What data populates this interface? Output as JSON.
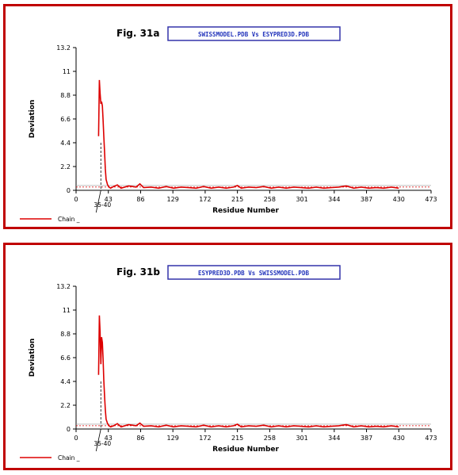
{
  "charts": [
    {
      "fig_label": "Fig. 31a",
      "title": "SWISSMODEL.PDB Vs ESYPRED3D.PDB",
      "legend_label": "Chain _",
      "annotation": "35-40"
    },
    {
      "fig_label": "Fig. 31b",
      "title": "ESYPRED3D.PDB Vs SWISSMODEL.PDB",
      "legend_label": "Chain _",
      "annotation": "35-40"
    }
  ],
  "colors": {
    "series": "#dd0000",
    "frame": "#c00000",
    "title_box": "#3333aa",
    "title_text": "#2233bb"
  },
  "chart_data": [
    {
      "type": "line",
      "title": "SWISSMODEL.PDB Vs ESYPRED3D.PDB",
      "xlabel": "Residue Number",
      "ylabel": "Deviation",
      "xlim": [
        0,
        473
      ],
      "ylim": [
        0,
        13.2
      ],
      "xticks": [
        0,
        43,
        86,
        129,
        172,
        215,
        258,
        301,
        344,
        387,
        430,
        473
      ],
      "yticks": [
        0,
        2.2,
        4.4,
        6.6,
        8.8,
        11,
        13.2
      ],
      "xtick_labels": [
        "0",
        "43",
        "86",
        "129",
        "172",
        "215",
        "258",
        "301",
        "344",
        "387",
        "430",
        "473"
      ],
      "ytick_labels": [
        "0",
        "2.2",
        "4.4",
        "6.6",
        "8.8",
        "11",
        "13.2"
      ],
      "threshold": 0.3,
      "series": [
        {
          "name": "Chain _",
          "x": [
            30,
            31,
            32,
            33,
            34,
            35,
            36,
            37,
            38,
            39,
            40,
            42,
            44,
            46,
            50,
            55,
            60,
            70,
            80,
            85,
            90,
            100,
            110,
            120,
            130,
            140,
            150,
            160,
            170,
            180,
            190,
            200,
            210,
            215,
            220,
            230,
            240,
            250,
            260,
            270,
            280,
            290,
            300,
            310,
            320,
            330,
            340,
            350,
            360,
            370,
            380,
            390,
            400,
            410,
            420,
            430
          ],
          "y": [
            5.0,
            10.2,
            9.0,
            8.0,
            8.2,
            7.8,
            6.5,
            5.0,
            3.5,
            2.0,
            1.0,
            0.5,
            0.3,
            0.2,
            0.35,
            0.5,
            0.2,
            0.4,
            0.3,
            0.6,
            0.25,
            0.3,
            0.2,
            0.35,
            0.2,
            0.3,
            0.25,
            0.2,
            0.35,
            0.2,
            0.3,
            0.2,
            0.3,
            0.45,
            0.2,
            0.3,
            0.25,
            0.35,
            0.2,
            0.3,
            0.2,
            0.3,
            0.25,
            0.2,
            0.3,
            0.2,
            0.25,
            0.3,
            0.4,
            0.2,
            0.3,
            0.2,
            0.25,
            0.2,
            0.3,
            0.2
          ]
        }
      ]
    },
    {
      "type": "line",
      "title": "ESYPRED3D.PDB Vs SWISSMODEL.PDB",
      "xlabel": "Residue Number",
      "ylabel": "Deviation",
      "xlim": [
        0,
        473
      ],
      "ylim": [
        0,
        13.2
      ],
      "xticks": [
        0,
        43,
        86,
        129,
        172,
        215,
        258,
        301,
        344,
        387,
        430,
        473
      ],
      "yticks": [
        0,
        2.2,
        4.4,
        6.6,
        8.8,
        11,
        13.2
      ],
      "xtick_labels": [
        "0",
        "43",
        "86",
        "129",
        "172",
        "215",
        "258",
        "301",
        "344",
        "387",
        "430",
        "473"
      ],
      "ytick_labels": [
        "0",
        "2.2",
        "4.4",
        "6.6",
        "8.8",
        "11",
        "13.2"
      ],
      "threshold": 0.3,
      "series": [
        {
          "name": "Chain _",
          "x": [
            30,
            31,
            32,
            33,
            34,
            35,
            36,
            37,
            38,
            39,
            40,
            42,
            44,
            46,
            50,
            55,
            60,
            70,
            80,
            85,
            90,
            100,
            110,
            120,
            130,
            140,
            150,
            160,
            170,
            180,
            190,
            200,
            210,
            215,
            220,
            230,
            240,
            250,
            260,
            270,
            280,
            290,
            300,
            310,
            320,
            330,
            340,
            350,
            360,
            370,
            380,
            390,
            400,
            410,
            420,
            430
          ],
          "y": [
            5.0,
            10.5,
            9.0,
            6.0,
            8.5,
            8.0,
            6.5,
            4.5,
            3.0,
            1.8,
            0.9,
            0.5,
            0.3,
            0.2,
            0.3,
            0.5,
            0.2,
            0.4,
            0.3,
            0.55,
            0.25,
            0.3,
            0.2,
            0.35,
            0.2,
            0.3,
            0.25,
            0.2,
            0.35,
            0.2,
            0.3,
            0.2,
            0.3,
            0.45,
            0.2,
            0.3,
            0.25,
            0.35,
            0.2,
            0.3,
            0.2,
            0.3,
            0.25,
            0.2,
            0.3,
            0.2,
            0.25,
            0.3,
            0.4,
            0.2,
            0.3,
            0.2,
            0.25,
            0.2,
            0.3,
            0.2
          ]
        }
      ]
    }
  ]
}
